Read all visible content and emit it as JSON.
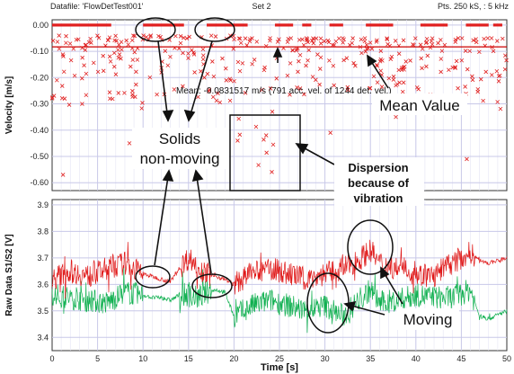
{
  "header": {
    "datafile": "Datafile: 'FlowDetTest001'",
    "set": "Set 2",
    "pts": "Pts. 250 kS, : 5 kHz"
  },
  "colors": {
    "velocity_marker": "#e02020",
    "signal_s1": "#e01818",
    "signal_s2": "#10b050",
    "mean_line": "#cc0000",
    "grid": "#c8c8e8"
  },
  "chart_data": [
    {
      "type": "scatter",
      "ylabel": "Velocity [m/s]",
      "ylim": [
        -0.63,
        0.02
      ],
      "yticks": [
        "0.00",
        "-0.10",
        "-0.20",
        "-0.30",
        "-0.40",
        "-0.50",
        "-0.60"
      ],
      "xlim": [
        0,
        50
      ],
      "grid": true,
      "mean_value": -0.0831517,
      "mean_label": "Mean: -0.0831517 m/s (791 acc. vel. of 1244 det. vel.)",
      "zero_segments": [
        [
          0,
          6.5
        ],
        [
          10,
          14.5
        ],
        [
          17,
          21.5
        ],
        [
          24.5,
          26.5
        ],
        [
          27.5,
          28.5
        ],
        [
          30.5,
          32
        ],
        [
          34.5,
          37.5
        ],
        [
          40.5,
          43.5
        ],
        [
          45.5,
          48
        ],
        [
          48.5,
          49.5
        ]
      ],
      "scatter_regions": [
        {
          "x": [
            0,
            10
          ],
          "y": [
            -0.04,
            -0.32
          ],
          "count": 85
        },
        {
          "x": [
            10,
            20
          ],
          "y": [
            -0.04,
            -0.3
          ],
          "count": 65
        },
        {
          "x": [
            20,
            30
          ],
          "y": [
            -0.05,
            -0.28
          ],
          "count": 70
        },
        {
          "x": [
            30,
            40
          ],
          "y": [
            -0.05,
            -0.3
          ],
          "count": 80
        },
        {
          "x": [
            40,
            50
          ],
          "y": [
            -0.05,
            -0.32
          ],
          "count": 70
        },
        {
          "x": [
            20.5,
            24.5
          ],
          "y": [
            -0.33,
            -0.6
          ],
          "count": 10
        }
      ]
    },
    {
      "type": "line",
      "ylabel": "Raw Data S1/S2 [V]",
      "xlabel": "Time [s]",
      "xlim": [
        0,
        50
      ],
      "ylim": [
        3.35,
        3.92
      ],
      "xticks": [
        "0",
        "5",
        "10",
        "15",
        "20",
        "25",
        "30",
        "35",
        "40",
        "45",
        "50"
      ],
      "yticks": [
        "3.4",
        "3.5",
        "3.6",
        "3.7",
        "3.8",
        "3.9"
      ],
      "grid": true,
      "series": [
        {
          "name": "S1",
          "x": [
            0,
            2,
            4,
            6,
            8,
            10,
            11,
            12,
            13,
            14,
            15,
            16,
            17,
            18,
            19,
            20,
            22,
            24,
            26,
            28,
            30,
            32,
            34,
            35,
            36,
            38,
            40,
            42,
            44,
            46,
            47,
            48,
            50
          ],
          "y": [
            3.62,
            3.65,
            3.63,
            3.66,
            3.68,
            3.64,
            3.63,
            3.62,
            3.61,
            3.66,
            3.7,
            3.67,
            3.64,
            3.63,
            3.62,
            3.6,
            3.64,
            3.66,
            3.64,
            3.62,
            3.64,
            3.66,
            3.7,
            3.73,
            3.68,
            3.66,
            3.64,
            3.63,
            3.68,
            3.72,
            3.69,
            3.68,
            3.7
          ],
          "noise": 0.045
        },
        {
          "name": "S2",
          "x": [
            0,
            2,
            4,
            6,
            8,
            10,
            11,
            12,
            13,
            14,
            15,
            16,
            17,
            18,
            19,
            20,
            22,
            24,
            26,
            28,
            30,
            32,
            34,
            35,
            36,
            38,
            40,
            42,
            44,
            46,
            47,
            48,
            50
          ],
          "y": [
            3.56,
            3.55,
            3.54,
            3.53,
            3.57,
            3.56,
            3.55,
            3.55,
            3.54,
            3.56,
            3.56,
            3.55,
            3.57,
            3.58,
            3.57,
            3.48,
            3.52,
            3.54,
            3.52,
            3.5,
            3.52,
            3.48,
            3.55,
            3.58,
            3.53,
            3.54,
            3.56,
            3.55,
            3.55,
            3.58,
            3.48,
            3.47,
            3.5
          ],
          "noise": 0.045
        }
      ]
    }
  ],
  "annotations": {
    "solids_line1": "Solids",
    "solids_line2": "non-moving",
    "dispersion_line1": "Dispersion",
    "dispersion_line2": "because of",
    "dispersion_line3": "vibration",
    "mean_value": "Mean Value",
    "moving": "Moving"
  }
}
